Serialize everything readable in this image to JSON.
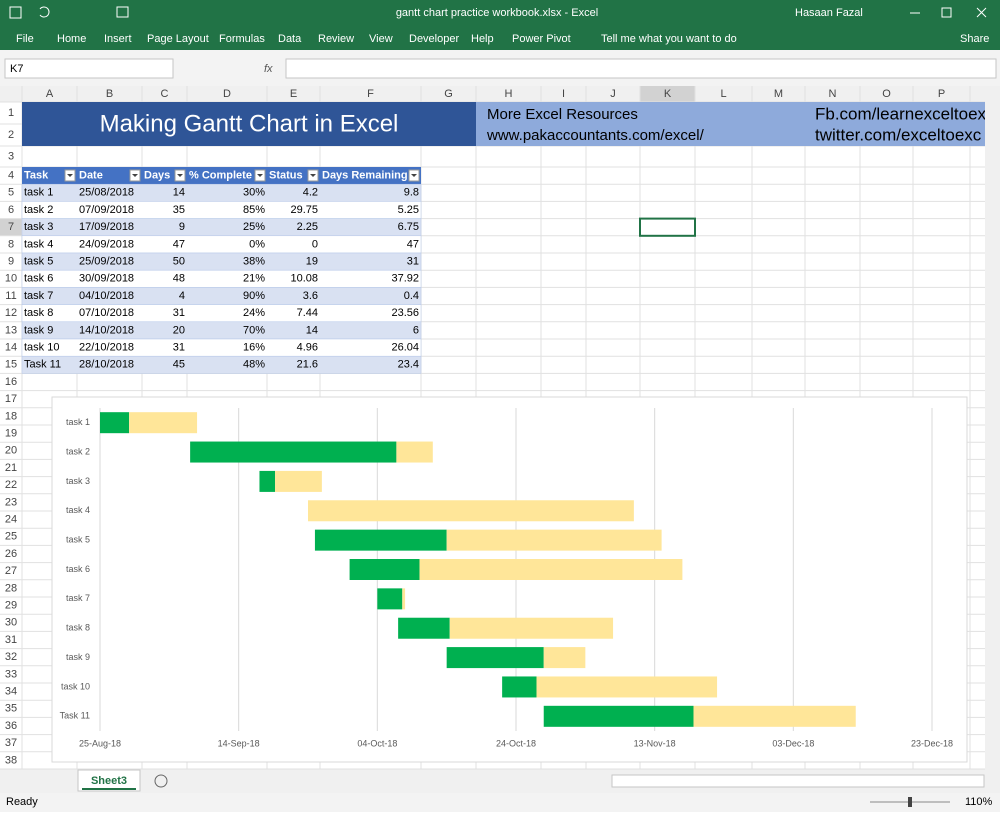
{
  "window": {
    "title": "gantt chart practice workbook.xlsx  -  Excel",
    "user": "Hasaan Fazal"
  },
  "ribbon": {
    "tabs": [
      "File",
      "Home",
      "Insert",
      "Page Layout",
      "Formulas",
      "Data",
      "Review",
      "View",
      "Developer",
      "Help",
      "Power Pivot"
    ],
    "tell_me": "Tell me what you want to do",
    "share": "Share"
  },
  "formula_bar": {
    "name_box": "K7",
    "fx": "fx"
  },
  "sheet": {
    "columns": [
      "A",
      "B",
      "C",
      "D",
      "E",
      "F",
      "G",
      "H",
      "I",
      "J",
      "K",
      "L",
      "M",
      "N",
      "O",
      "P"
    ],
    "rows": [
      1,
      2,
      3,
      4,
      5,
      6,
      7,
      8,
      9,
      10,
      11,
      12,
      13,
      14,
      15,
      16,
      17,
      18,
      19,
      20,
      21,
      22,
      23,
      24,
      25,
      26,
      27,
      28,
      29,
      30,
      31,
      32,
      33,
      34,
      35,
      36,
      37,
      38
    ],
    "banner": {
      "title": "Making Gantt Chart in Excel",
      "resources_1": "More Excel Resources",
      "resources_2": "www.pakaccountants.com/excel/",
      "social_1": "Fb.com/learnexceltoexc",
      "social_2": "twitter.com/exceltoexc"
    },
    "table": {
      "header": [
        "Task",
        "Date",
        "Days",
        "% Complete",
        "Status",
        "Days Remaining"
      ],
      "rows": [
        [
          "task 1",
          "25/08/2018",
          "14",
          "30%",
          "4.2",
          "9.8"
        ],
        [
          "task 2",
          "07/09/2018",
          "35",
          "85%",
          "29.75",
          "5.25"
        ],
        [
          "task 3",
          "17/09/2018",
          "9",
          "25%",
          "2.25",
          "6.75"
        ],
        [
          "task 4",
          "24/09/2018",
          "47",
          "0%",
          "0",
          "47"
        ],
        [
          "task 5",
          "25/09/2018",
          "50",
          "38%",
          "19",
          "31"
        ],
        [
          "task 6",
          "30/09/2018",
          "48",
          "21%",
          "10.08",
          "37.92"
        ],
        [
          "task 7",
          "04/10/2018",
          "4",
          "90%",
          "3.6",
          "0.4"
        ],
        [
          "task 8",
          "07/10/2018",
          "31",
          "24%",
          "7.44",
          "23.56"
        ],
        [
          "task 9",
          "14/10/2018",
          "20",
          "70%",
          "14",
          "6"
        ],
        [
          "task 10",
          "22/10/2018",
          "31",
          "16%",
          "4.96",
          "26.04"
        ],
        [
          "Task 11",
          "28/10/2018",
          "45",
          "48%",
          "21.6",
          "23.4"
        ]
      ]
    }
  },
  "chart_data": {
    "type": "gantt",
    "categories": [
      "task 1",
      "task 2",
      "task 3",
      "task 4",
      "task 5",
      "task 6",
      "task 7",
      "task 8",
      "task 9",
      "task 10",
      "Task 11"
    ],
    "series": [
      {
        "color": "none",
        "values": [
          43337,
          43350,
          43360,
          43367,
          43368,
          43373,
          43377,
          43380,
          43387,
          43395,
          43401
        ]
      },
      {
        "color": "#00b050",
        "values": [
          4.2,
          29.75,
          2.25,
          0,
          19,
          10.08,
          3.6,
          7.44,
          14,
          4.96,
          21.6
        ]
      },
      {
        "color": "#ffe699",
        "values": [
          9.8,
          5.25,
          6.75,
          47,
          31,
          37.92,
          0.4,
          23.56,
          6,
          26.04,
          23.4
        ]
      }
    ],
    "xlim": [
      43337,
      43457
    ],
    "xticks": [
      {
        "value": 43337,
        "label": "25-Aug-18"
      },
      {
        "value": 43357,
        "label": "14-Sep-18"
      },
      {
        "value": 43377,
        "label": "04-Oct-18"
      },
      {
        "value": 43397,
        "label": "24-Oct-18"
      },
      {
        "value": 43417,
        "label": "13-Nov-18"
      },
      {
        "value": 43437,
        "label": "03-Dec-18"
      },
      {
        "value": 43457,
        "label": "23-Dec-18"
      }
    ],
    "grid": true
  },
  "status_bar": {
    "sheet_tab": "Sheet3",
    "status": "Ready",
    "zoom": "110%"
  }
}
